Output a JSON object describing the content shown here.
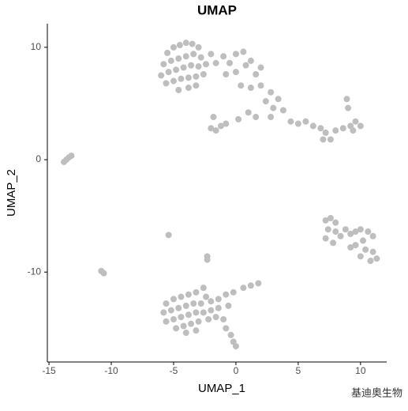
{
  "chart_data": {
    "type": "scatter",
    "title": "UMAP",
    "x_label": "UMAP_1",
    "y_label": "UMAP_2",
    "color": "#bebebe",
    "xlim": [
      -15.13,
      12.1
    ],
    "ylim": [
      -18,
      12.1
    ],
    "xticks": [
      -15,
      -10,
      -5,
      0,
      5,
      10
    ],
    "yticks": [
      -10,
      0,
      10
    ],
    "watermark": "基迪奥生物",
    "points": [
      [
        -5.5,
        9.5
      ],
      [
        -5,
        10
      ],
      [
        -4.5,
        10.2
      ],
      [
        -4,
        10.4
      ],
      [
        -3.5,
        10.3
      ],
      [
        -3,
        10
      ],
      [
        -5.8,
        8.5
      ],
      [
        -5.2,
        8.8
      ],
      [
        -4.6,
        9
      ],
      [
        -4,
        9.2
      ],
      [
        -3.4,
        9.4
      ],
      [
        -2.8,
        9.1
      ],
      [
        -6,
        7.5
      ],
      [
        -5.4,
        7.8
      ],
      [
        -4.8,
        8
      ],
      [
        -4.2,
        8.2
      ],
      [
        -3.6,
        8.4
      ],
      [
        -3,
        8.3
      ],
      [
        -2.4,
        8.5
      ],
      [
        -5.6,
        6.8
      ],
      [
        -5,
        7
      ],
      [
        -4.4,
        7.2
      ],
      [
        -3.8,
        7.3
      ],
      [
        -3.2,
        7.4
      ],
      [
        -2.6,
        7.6
      ],
      [
        -4.6,
        6.2
      ],
      [
        -3.8,
        6.4
      ],
      [
        -3.2,
        6.6
      ],
      [
        -2,
        9.4
      ],
      [
        -1.6,
        8.6
      ],
      [
        -1,
        9.2
      ],
      [
        -0.5,
        8.6
      ],
      [
        0,
        9.4
      ],
      [
        0.6,
        9.6
      ],
      [
        -0.8,
        7.6
      ],
      [
        0,
        7.8
      ],
      [
        0.8,
        8.4
      ],
      [
        1.2,
        8.8
      ],
      [
        1.6,
        7.6
      ],
      [
        2,
        8.2
      ],
      [
        0.4,
        6.6
      ],
      [
        1.2,
        6.4
      ],
      [
        2,
        6.6
      ],
      [
        2.8,
        6
      ],
      [
        2.4,
        5.2
      ],
      [
        3,
        4.6
      ],
      [
        3.4,
        5.4
      ],
      [
        3.8,
        4.4
      ],
      [
        2.8,
        3.8
      ],
      [
        1.6,
        3.8
      ],
      [
        1,
        4.2
      ],
      [
        0.2,
        3.6
      ],
      [
        4.4,
        3.4
      ],
      [
        5,
        3.2
      ],
      [
        5.6,
        3.4
      ],
      [
        6.2,
        3
      ],
      [
        6.8,
        2.8
      ],
      [
        7.2,
        2.4
      ],
      [
        7.6,
        1.8
      ],
      [
        8,
        2.6
      ],
      [
        7,
        1.8
      ],
      [
        8.6,
        2.8
      ],
      [
        9.2,
        3
      ],
      [
        9.6,
        3.4
      ],
      [
        10,
        3
      ],
      [
        9.4,
        2.6
      ],
      [
        9,
        4.6
      ],
      [
        8.9,
        5.4
      ],
      [
        -2,
        2.8
      ],
      [
        -1.6,
        2.6
      ],
      [
        -1.2,
        3
      ],
      [
        -1.8,
        3.8
      ],
      [
        -0.8,
        3.2
      ],
      [
        -13.8,
        -0.2
      ],
      [
        -13.6,
        0
      ],
      [
        -13.4,
        0.2
      ],
      [
        -13.2,
        0.35
      ],
      [
        7.2,
        -5.4
      ],
      [
        7.6,
        -5.2
      ],
      [
        8,
        -5.6
      ],
      [
        7.4,
        -6.2
      ],
      [
        8,
        -6.4
      ],
      [
        7.2,
        -7
      ],
      [
        7.8,
        -7.4
      ],
      [
        8.4,
        -6.8
      ],
      [
        8.8,
        -6.2
      ],
      [
        9.2,
        -6.6
      ],
      [
        9.6,
        -6.4
      ],
      [
        10,
        -6.2
      ],
      [
        10.6,
        -6.4
      ],
      [
        11,
        -6.8
      ],
      [
        10.2,
        -7.2
      ],
      [
        9.6,
        -7.6
      ],
      [
        10.4,
        -8
      ],
      [
        11,
        -8.2
      ],
      [
        11.3,
        -8.8
      ],
      [
        10.8,
        -9
      ],
      [
        10,
        -8.6
      ],
      [
        9.2,
        -7.8
      ],
      [
        -5.4,
        -6.7
      ],
      [
        -2.3,
        -8.6
      ],
      [
        -2.3,
        -8.9
      ],
      [
        -10.8,
        -9.9
      ],
      [
        -10.6,
        -10.1
      ],
      [
        -5.6,
        -12.8
      ],
      [
        -5,
        -12.4
      ],
      [
        -4.4,
        -12.2
      ],
      [
        -3.8,
        -12
      ],
      [
        -3.2,
        -11.8
      ],
      [
        -2.6,
        -11.4
      ],
      [
        -2.4,
        -12.2
      ],
      [
        -5.8,
        -13.6
      ],
      [
        -5.2,
        -13.4
      ],
      [
        -4.6,
        -13.2
      ],
      [
        -4,
        -13
      ],
      [
        -3.4,
        -12.8
      ],
      [
        -2.8,
        -12.8
      ],
      [
        -2,
        -12.6
      ],
      [
        -1.4,
        -12.4
      ],
      [
        -0.8,
        -12
      ],
      [
        -0.2,
        -11.8
      ],
      [
        0.6,
        -11.4
      ],
      [
        1.2,
        -11.2
      ],
      [
        1.8,
        -11
      ],
      [
        -5.6,
        -14.4
      ],
      [
        -5,
        -14.2
      ],
      [
        -4.4,
        -14
      ],
      [
        -3.8,
        -13.8
      ],
      [
        -3.2,
        -13.6
      ],
      [
        -2.6,
        -13.6
      ],
      [
        -2,
        -13.4
      ],
      [
        -1.4,
        -13.2
      ],
      [
        -0.6,
        -13
      ],
      [
        -4.8,
        -15
      ],
      [
        -4.2,
        -14.8
      ],
      [
        -3.6,
        -14.6
      ],
      [
        -3,
        -14.4
      ],
      [
        -2.2,
        -14.2
      ],
      [
        -1.6,
        -14
      ],
      [
        -1,
        -14.2
      ],
      [
        -4,
        -15.4
      ],
      [
        -3.2,
        -15.2
      ],
      [
        -0.8,
        -15
      ],
      [
        -0.4,
        -15.6
      ],
      [
        -0.2,
        -16.2
      ],
      [
        0,
        -16.6
      ]
    ]
  }
}
